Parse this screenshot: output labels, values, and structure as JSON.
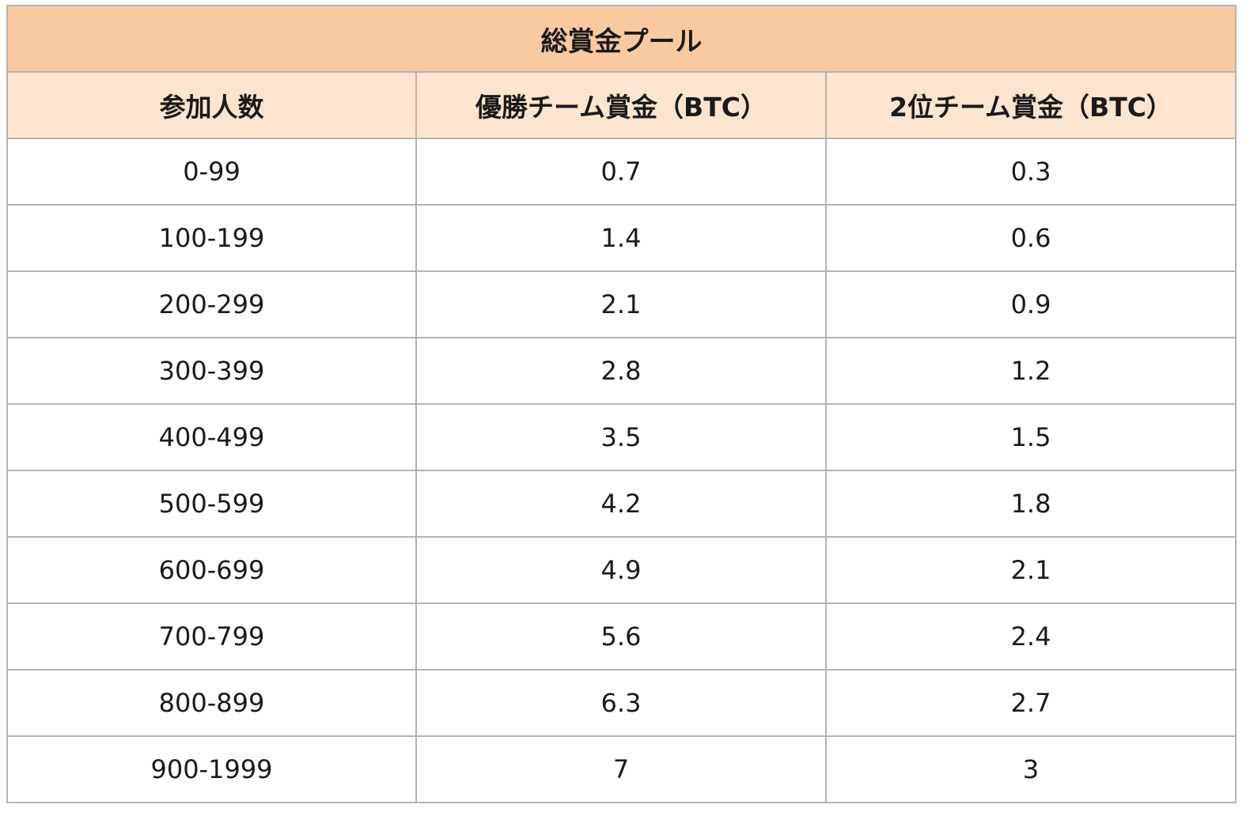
{
  "table": {
    "title": "総賞金プール",
    "headers": [
      "参加人数",
      "優勝チーム賞金（BTC）",
      "2位チーム賞金（BTC）"
    ],
    "rows": [
      [
        "0-99",
        "0.7",
        "0.3"
      ],
      [
        "100-199",
        "1.4",
        "0.6"
      ],
      [
        "200-299",
        "2.1",
        "0.9"
      ],
      [
        "300-399",
        "2.8",
        "1.2"
      ],
      [
        "400-499",
        "3.5",
        "1.5"
      ],
      [
        "500-599",
        "4.2",
        "1.8"
      ],
      [
        "600-699",
        "4.9",
        "2.1"
      ],
      [
        "700-799",
        "5.6",
        "2.4"
      ],
      [
        "800-899",
        "6.3",
        "2.7"
      ],
      [
        "900-1999",
        "7",
        "3"
      ]
    ]
  },
  "colors": {
    "title_bg": "#f9c9a0",
    "header_bg": "#fce4cf",
    "border": "#b3b3b3"
  }
}
